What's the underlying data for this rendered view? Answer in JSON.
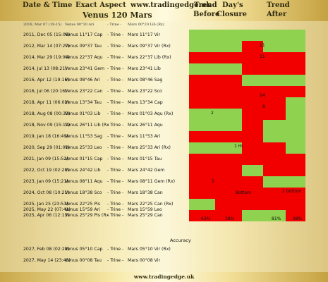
{
  "header": {
    "date_time": "Date & Time",
    "exact_aspect": "Exact Aspect",
    "site": "www.tradingedge.uk",
    "trend": "Trend",
    "days": "Day's",
    "trend_after": "Trend",
    "title": "Venus 120 Mars",
    "before": "Before",
    "closure": "Closure",
    "after": "After"
  },
  "subheader": {
    "date": "2018, Mar 07 (19:15)",
    "venus": "Venus 00°20 Ari",
    "aspect": "- Trine -",
    "mars": "Mars 00°20 Lib (Rx)"
  },
  "rows": [
    {
      "date": "2011, Dec 05 (15:06)",
      "venus": "Venus 11°17 Cap",
      "aspect": "- Trine -",
      "mars": "Mars 11°17 Vir"
    },
    {
      "date": "2012, Mar 14 (07:27)",
      "venus": "Venus 09°37 Tau",
      "aspect": "- Trine -",
      "mars": "Mars 09°37 Vir (Rx)"
    },
    {
      "date": "2014, Mar 29 (19:04)",
      "venus": "Venus 22°37 Aqu",
      "aspect": "- Trine -",
      "mars": "Mars 22°37 Lib (Rx)"
    },
    {
      "date": "2014, Jul 13 (08:21)",
      "venus": "Venus 23°41 Gem",
      "aspect": "- Trine -",
      "mars": "Mars 23°41 Lib"
    },
    {
      "date": "2016, Apr 12 (19:16)",
      "venus": "Venus 08°46 Ari",
      "aspect": "- Trine -",
      "mars": "Mars 08°46 Sag"
    },
    {
      "date": "2016, Jul 06 (20:16)",
      "venus": "Venus 23°22 Can",
      "aspect": "- Trine -",
      "mars": "Mars 23°22 Sco"
    },
    {
      "date": "2018, Apr 11 (06:02)",
      "venus": "Venus 13°34 Tau",
      "aspect": "- Trine -",
      "mars": "Mars 13°34 Cap"
    },
    {
      "date": "2018, Aug 08 (00:32)",
      "venus": "Venus 01°03 Lib",
      "aspect": "- Trine -",
      "mars": "Mars 01°03 Aqu (Rx)"
    },
    {
      "date": "2018, Nov 09 (15:11)",
      "venus": "Venus 26°11 Lib (Rx",
      "aspect": "- Trine -",
      "mars": "Mars 26°11 Aqu"
    },
    {
      "date": "2019, Jan 18 (16:49)",
      "venus": "Venus 11°53 Sag",
      "aspect": "- Trine -",
      "mars": "Mars 11°53 Ari"
    },
    {
      "date": "2020, Sep 29 (01:01)",
      "venus": "Venus 25°33 Leo",
      "aspect": "- Trine -",
      "mars": "Mars 25°33 Ari (Rx)"
    },
    {
      "date": "2021, Jan 09 (15:52)",
      "venus": "Venus 01°15 Cap",
      "aspect": "- Trine -",
      "mars": "Mars 01°15 Tau"
    },
    {
      "date": "2022, Oct 19 (02:20)",
      "venus": "Venus 24°42 Lib",
      "aspect": "- Trine -",
      "mars": "Mars 24°42 Gem"
    },
    {
      "date": "2023, Jan 09 (15:21)",
      "venus": "Venus 08°11 Aqu",
      "aspect": "- Trine -",
      "mars": "Mars 08°11 Gem (Rx)"
    },
    {
      "date": "2024, Oct 08 (10:21)",
      "venus": "Venus 18°38 Sco",
      "aspect": "- Trine -",
      "mars": "Mars 18°38 Can"
    },
    {
      "date": "2025, Jan 25 (23:53)",
      "venus": "Venus 22°25 Pis",
      "aspect": "- Trine -",
      "mars": "Mars 22°25 Can (Rx)"
    },
    {
      "date": "2025, Apr 06 (12:13)",
      "venus": "Venus 25°29 Pis (Rx",
      "aspect": "- Trine -",
      "mars": "Mars 25°29 Can"
    }
  ],
  "future_rows": [
    {
      "date": "2025, May 22 (07:41)",
      "venus": "Venus 15°59 Ari",
      "aspect": "- Trine -",
      "mars": "Mars 15°59 Leo"
    },
    {
      "date": "2027, Feb 08 (02:28)",
      "venus": "Venus 05°10 Cap",
      "aspect": "- Trine -",
      "mars": "Mars 05°10 Vir (Rx)"
    },
    {
      "date": "2027, May 14 (23:45)",
      "venus": "Venus 00°08 Tau",
      "aspect": "- Trine -",
      "mars": "Mars 00°08 Vir"
    }
  ],
  "cell_notes": [
    "11",
    "11",
    "24",
    "8",
    "2",
    "1 Hi",
    "2 bottom",
    "5",
    "Bottom"
  ],
  "stats": {
    "before": "63%",
    "closure": "38%",
    "after1": "81%",
    "after2": "38%"
  },
  "accuracy_label": "Accuracy",
  "footer": "www.tradingedge.uk",
  "colors": {
    "up": "#8fd24f",
    "down": "#f20000",
    "gold": "#e6cf7a"
  }
}
